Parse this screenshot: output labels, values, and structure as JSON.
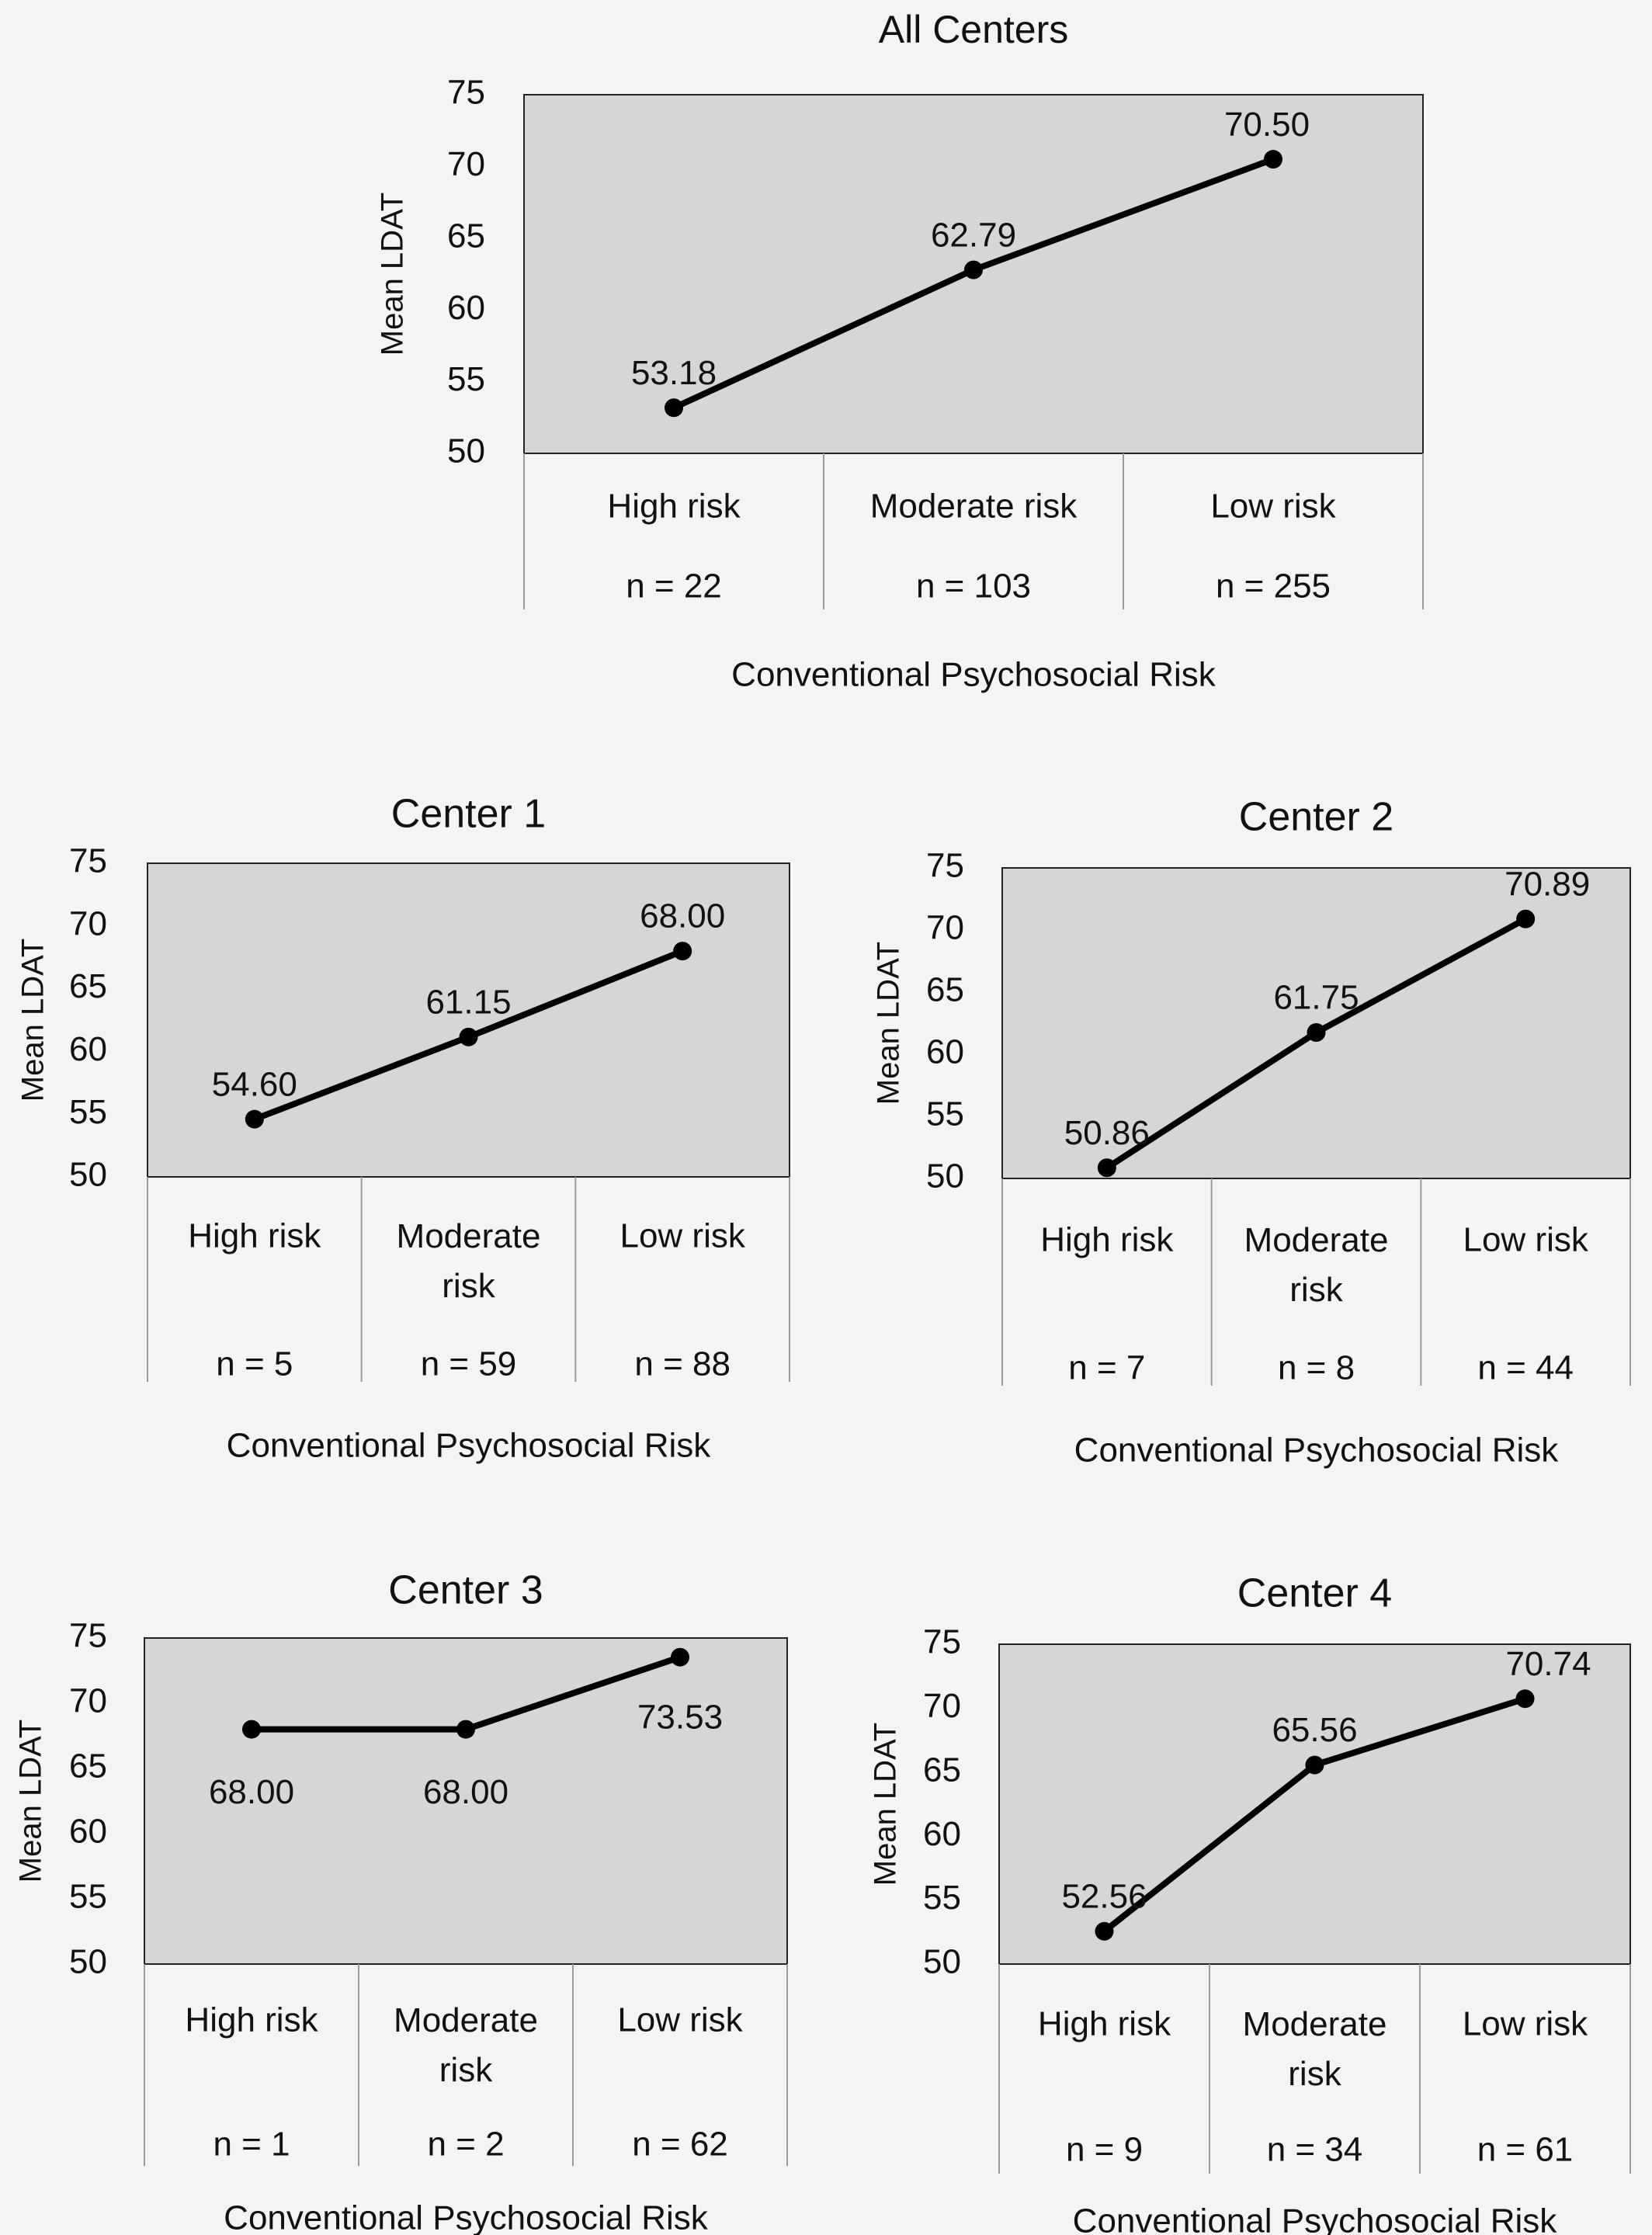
{
  "chart_data": [
    {
      "type": "line",
      "title": "All Centers",
      "categories": [
        "High risk",
        "Moderate risk",
        "Low risk"
      ],
      "n_labels": [
        "n = 22",
        "n = 103",
        "n = 255"
      ],
      "values": [
        53.18,
        62.79,
        70.5
      ],
      "data_labels": [
        "53.18",
        "62.79",
        "70.50"
      ],
      "xlabel": "Conventional Psychosocial Risk",
      "ylabel": "Mean LDAT",
      "ylim": [
        50,
        75
      ],
      "yticks": [
        "50",
        "55",
        "60",
        "65",
        "70",
        "75"
      ],
      "grid": false,
      "legend": "none"
    },
    {
      "type": "line",
      "title": "Center 1",
      "categories": [
        "High risk",
        "Moderate risk",
        "Low risk"
      ],
      "n_labels": [
        "n = 5",
        "n = 59",
        "n = 88"
      ],
      "values": [
        54.6,
        61.15,
        68.0
      ],
      "data_labels": [
        "54.60",
        "61.15",
        "68.00"
      ],
      "xlabel": "Conventional Psychosocial Risk",
      "ylabel": "Mean LDAT",
      "ylim": [
        50,
        75
      ],
      "yticks": [
        "50",
        "55",
        "60",
        "65",
        "70",
        "75"
      ],
      "grid": false,
      "legend": "none"
    },
    {
      "type": "line",
      "title": "Center 2",
      "categories": [
        "High risk",
        "Moderate risk",
        "Low risk"
      ],
      "n_labels": [
        "n = 7",
        "n = 8",
        "n = 44"
      ],
      "values": [
        50.86,
        61.75,
        70.89
      ],
      "data_labels": [
        "50.86",
        "61.75",
        "70.89"
      ],
      "xlabel": "Conventional Psychosocial Risk",
      "ylabel": "Mean LDAT",
      "ylim": [
        50,
        75
      ],
      "yticks": [
        "50",
        "55",
        "60",
        "65",
        "70",
        "75"
      ],
      "grid": false,
      "legend": "none"
    },
    {
      "type": "line",
      "title": "Center 3",
      "categories": [
        "High risk",
        "Moderate risk",
        "Low risk"
      ],
      "n_labels": [
        "n = 1",
        "n = 2",
        "n = 62"
      ],
      "values": [
        68.0,
        68.0,
        73.53
      ],
      "data_labels": [
        "68.00",
        "68.00",
        "73.53"
      ],
      "xlabel": "Conventional Psychosocial Risk",
      "ylabel": "Mean LDAT",
      "ylim": [
        50,
        75
      ],
      "yticks": [
        "50",
        "55",
        "60",
        "65",
        "70",
        "75"
      ],
      "grid": false,
      "legend": "none"
    },
    {
      "type": "line",
      "title": "Center 4",
      "categories": [
        "High risk",
        "Moderate risk",
        "Low risk"
      ],
      "n_labels": [
        "n = 9",
        "n = 34",
        "n = 61"
      ],
      "values": [
        52.56,
        65.56,
        70.74
      ],
      "data_labels": [
        "52.56",
        "65.56",
        "70.74"
      ],
      "xlabel": "Conventional Psychosocial Risk",
      "ylabel": "Mean LDAT",
      "ylim": [
        50,
        75
      ],
      "yticks": [
        "50",
        "55",
        "60",
        "65",
        "70",
        "75"
      ],
      "grid": false,
      "legend": "none"
    }
  ]
}
